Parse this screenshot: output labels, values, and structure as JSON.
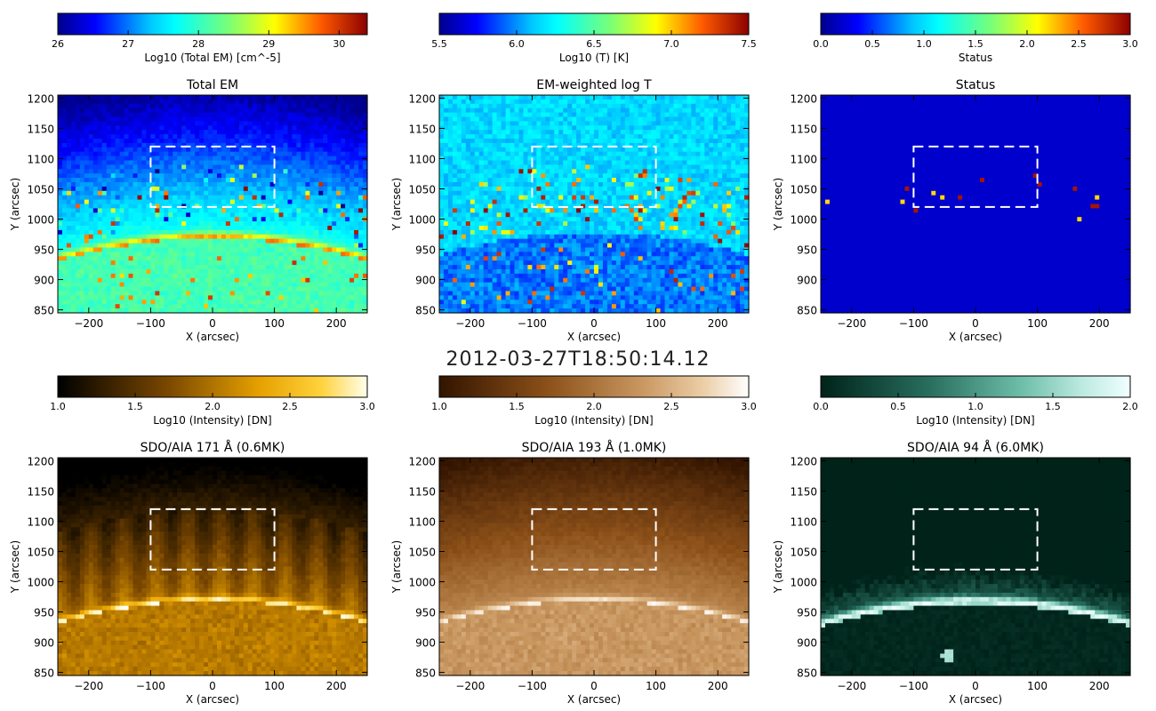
{
  "timestamp": "2012-03-27T18:50:14.12",
  "chart_data": [
    {
      "type": "heatmap",
      "title": "Total EM",
      "xlabel": "X (arcsec)",
      "ylabel": "Y (arcsec)",
      "xlim": [
        -250,
        250
      ],
      "ylim": [
        845,
        1205
      ],
      "xticks": [
        -200,
        -100,
        0,
        100,
        200
      ],
      "yticks": [
        850,
        900,
        950,
        1000,
        1050,
        1100,
        1150,
        1200
      ],
      "colorbar": {
        "label": "Log10 (Total EM) [cm^-5]",
        "range": [
          26,
          30.4
        ],
        "ticks": [
          "26",
          "27",
          "28",
          "29",
          "30"
        ],
        "tick_values": [
          26,
          27,
          28,
          29,
          30
        ],
        "colormap": "rainbow"
      },
      "highlight_box": {
        "x": [
          -100,
          100
        ],
        "y": [
          1020,
          1120
        ]
      },
      "limb_y_at_center": 968
    },
    {
      "type": "heatmap",
      "title": "EM-weighted log T",
      "xlabel": "X (arcsec)",
      "ylabel": "Y (arcsec)",
      "xlim": [
        -250,
        250
      ],
      "ylim": [
        845,
        1205
      ],
      "xticks": [
        -200,
        -100,
        0,
        100,
        200
      ],
      "yticks": [
        850,
        900,
        950,
        1000,
        1050,
        1100,
        1150,
        1200
      ],
      "colorbar": {
        "label": "Log10 (T) [K]",
        "range": [
          5.5,
          7.5
        ],
        "ticks": [
          "5.5",
          "6.0",
          "6.5",
          "7.0",
          "7.5"
        ],
        "tick_values": [
          5.5,
          6.0,
          6.5,
          7.0,
          7.5
        ],
        "colormap": "rainbow"
      },
      "highlight_box": {
        "x": [
          -100,
          100
        ],
        "y": [
          1020,
          1120
        ]
      },
      "limb_y_at_center": 968
    },
    {
      "type": "heatmap",
      "title": "Status",
      "xlabel": "X (arcsec)",
      "ylabel": "Y (arcsec)",
      "xlim": [
        -250,
        250
      ],
      "ylim": [
        845,
        1205
      ],
      "xticks": [
        -200,
        -100,
        0,
        100,
        200
      ],
      "yticks": [
        850,
        900,
        950,
        1000,
        1050,
        1100,
        1150,
        1200
      ],
      "colorbar": {
        "label": "Status",
        "range": [
          0,
          3
        ],
        "ticks": [
          "0.0",
          "0.5",
          "1.0",
          "1.5",
          "2.0",
          "2.5",
          "3.0"
        ],
        "tick_values": [
          0,
          0.5,
          1,
          1.5,
          2,
          2.5,
          3
        ],
        "colormap": "rainbow"
      },
      "highlight_box": {
        "x": [
          -100,
          100
        ],
        "y": [
          1020,
          1120
        ]
      },
      "limb_y_at_center": 968
    },
    {
      "type": "heatmap",
      "title": "SDO/AIA 171 Å (0.6MK)",
      "xlabel": "X (arcsec)",
      "ylabel": "Y (arcsec)",
      "xlim": [
        -250,
        250
      ],
      "ylim": [
        845,
        1205
      ],
      "xticks": [
        -200,
        -100,
        0,
        100,
        200
      ],
      "yticks": [
        850,
        900,
        950,
        1000,
        1050,
        1100,
        1150,
        1200
      ],
      "colorbar": {
        "label": "Log10 (Intensity) [DN]",
        "range": [
          1,
          3
        ],
        "ticks": [
          "1.0",
          "1.5",
          "2.0",
          "2.5",
          "3.0"
        ],
        "tick_values": [
          1,
          1.5,
          2,
          2.5,
          3
        ],
        "colormap": "aia171"
      },
      "highlight_box": {
        "x": [
          -100,
          100
        ],
        "y": [
          1020,
          1120
        ]
      },
      "limb_y_at_center": 968
    },
    {
      "type": "heatmap",
      "title": "SDO/AIA 193 Å (1.0MK)",
      "xlabel": "X (arcsec)",
      "ylabel": "Y (arcsec)",
      "xlim": [
        -250,
        250
      ],
      "ylim": [
        845,
        1205
      ],
      "xticks": [
        -200,
        -100,
        0,
        100,
        200
      ],
      "yticks": [
        850,
        900,
        950,
        1000,
        1050,
        1100,
        1150,
        1200
      ],
      "colorbar": {
        "label": "Log10 (Intensity) [DN]",
        "range": [
          1,
          3
        ],
        "ticks": [
          "1.0",
          "1.5",
          "2.0",
          "2.5",
          "3.0"
        ],
        "tick_values": [
          1,
          1.5,
          2,
          2.5,
          3
        ],
        "colormap": "aia193"
      },
      "highlight_box": {
        "x": [
          -100,
          100
        ],
        "y": [
          1020,
          1120
        ]
      },
      "limb_y_at_center": 968
    },
    {
      "type": "heatmap",
      "title": "SDO/AIA 94 Å (6.0MK)",
      "xlabel": "X (arcsec)",
      "ylabel": "Y (arcsec)",
      "xlim": [
        -250,
        250
      ],
      "ylim": [
        845,
        1205
      ],
      "xticks": [
        -200,
        -100,
        0,
        100,
        200
      ],
      "yticks": [
        850,
        900,
        950,
        1000,
        1050,
        1100,
        1150,
        1200
      ],
      "colorbar": {
        "label": "Log10 (Intensity) [DN]",
        "range": [
          0,
          2
        ],
        "ticks": [
          "0.0",
          "0.5",
          "1.0",
          "1.5",
          "2.0"
        ],
        "tick_values": [
          0,
          0.5,
          1,
          1.5,
          2
        ],
        "colormap": "aia94"
      },
      "highlight_box": {
        "x": [
          -100,
          100
        ],
        "y": [
          1020,
          1120
        ]
      },
      "limb_y_at_center": 968
    }
  ]
}
